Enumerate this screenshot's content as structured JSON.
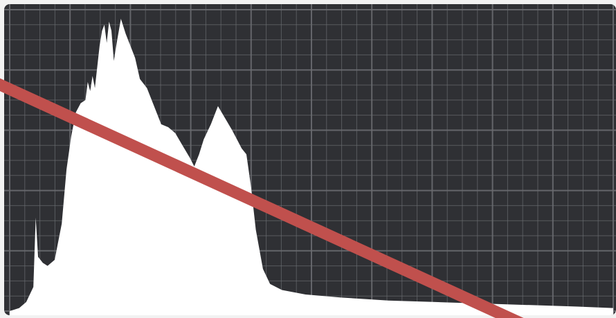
{
  "histogram": {
    "panel_color": "#2f3034",
    "grid_color": "#6a6c70",
    "fill_color": "#ffffff",
    "grid": true,
    "x_range": [
      0,
      255
    ],
    "y_range": [
      0,
      100
    ],
    "luminance": [
      [
        0,
        0
      ],
      [
        4,
        1
      ],
      [
        7,
        3
      ],
      [
        10,
        8
      ],
      [
        11,
        31
      ],
      [
        12,
        18
      ],
      [
        14,
        16
      ],
      [
        16,
        15
      ],
      [
        19,
        17
      ],
      [
        22,
        29
      ],
      [
        24,
        47
      ],
      [
        26,
        58
      ],
      [
        28,
        66
      ],
      [
        30,
        69
      ],
      [
        32,
        70
      ],
      [
        33,
        76
      ],
      [
        34,
        73
      ],
      [
        35,
        78
      ],
      [
        36,
        74
      ],
      [
        38,
        88
      ],
      [
        39,
        93
      ],
      [
        40,
        95
      ],
      [
        41,
        89
      ],
      [
        42,
        96
      ],
      [
        43,
        93
      ],
      [
        44,
        83
      ],
      [
        45,
        88
      ],
      [
        47,
        97
      ],
      [
        49,
        92
      ],
      [
        51,
        88
      ],
      [
        53,
        84
      ],
      [
        55,
        77
      ],
      [
        58,
        74
      ],
      [
        61,
        68
      ],
      [
        64,
        62
      ],
      [
        67,
        61
      ],
      [
        70,
        59
      ],
      [
        73,
        55
      ],
      [
        76,
        51
      ],
      [
        78,
        48
      ],
      [
        80,
        52
      ],
      [
        82,
        57
      ],
      [
        85,
        62
      ],
      [
        88,
        68
      ],
      [
        91,
        64
      ],
      [
        94,
        60
      ],
      [
        96,
        57
      ],
      [
        98,
        54
      ],
      [
        100,
        52
      ],
      [
        102,
        41
      ],
      [
        104,
        27
      ],
      [
        107,
        14
      ],
      [
        110,
        9
      ],
      [
        115,
        7
      ],
      [
        125,
        5.5
      ],
      [
        140,
        4.5
      ],
      [
        160,
        3.5
      ],
      [
        180,
        3
      ],
      [
        200,
        2.5
      ],
      [
        220,
        2
      ],
      [
        240,
        1.5
      ],
      [
        255,
        1
      ]
    ]
  },
  "overlay": {
    "type": "prohibition-slash",
    "color": "#c0504d"
  }
}
